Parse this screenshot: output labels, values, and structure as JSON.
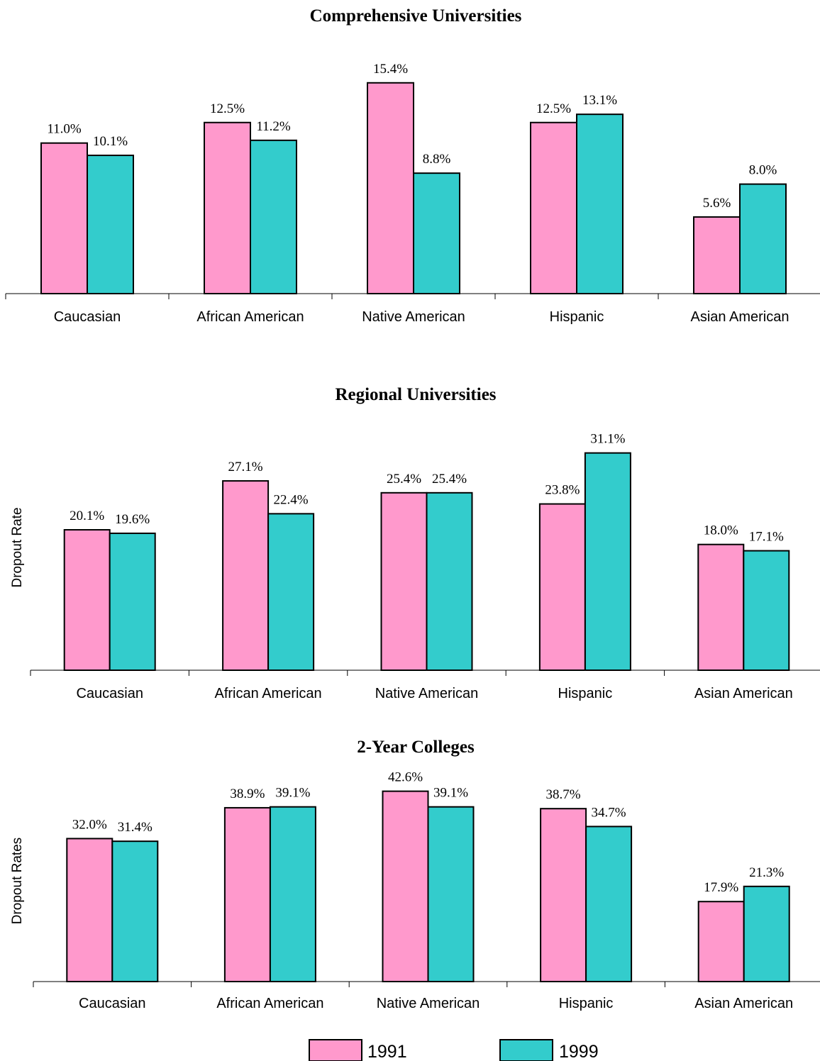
{
  "colors": {
    "1991": "#ff99cc",
    "1999": "#33cccc",
    "outline": "#000000"
  },
  "legend": {
    "placement": "bottom-center",
    "items": [
      {
        "label": "1991",
        "color": "#ff99cc"
      },
      {
        "label": "1999",
        "color": "#33cccc"
      }
    ]
  },
  "chart_data": [
    {
      "type": "bar",
      "title": "Comprehensive Universities",
      "xlabel": "",
      "ylabel": "",
      "categories": [
        "Caucasian",
        "African American",
        "Native American",
        "Hispanic",
        "Asian American"
      ],
      "series": [
        {
          "name": "1991",
          "values": [
            11.0,
            12.5,
            15.4,
            12.5,
            5.6
          ],
          "labels": [
            "11.0%",
            "12.5%",
            "15.4%",
            "12.5%",
            "5.6%"
          ]
        },
        {
          "name": "1999",
          "values": [
            10.1,
            11.2,
            8.8,
            13.1,
            8.0
          ],
          "labels": [
            "10.1%",
            "11.2%",
            "8.8%",
            "13.1%",
            "8.0%"
          ]
        }
      ],
      "grid": false
    },
    {
      "type": "bar",
      "title": "Regional Universities",
      "xlabel": "",
      "ylabel": "Dropout Rate",
      "categories": [
        "Caucasian",
        "African American",
        "Native American",
        "Hispanic",
        "Asian American"
      ],
      "series": [
        {
          "name": "1991",
          "values": [
            20.1,
            27.1,
            25.4,
            23.8,
            18.0
          ],
          "labels": [
            "20.1%",
            "27.1%",
            "25.4%",
            "23.8%",
            "18.0%"
          ]
        },
        {
          "name": "1999",
          "values": [
            19.6,
            22.4,
            25.4,
            31.1,
            17.1
          ],
          "labels": [
            "19.6%",
            "22.4%",
            "25.4%",
            "31.1%",
            "17.1%"
          ]
        }
      ],
      "grid": false
    },
    {
      "type": "bar",
      "title": "2-Year Colleges",
      "xlabel": "",
      "ylabel": "Dropout Rates",
      "categories": [
        "Caucasian",
        "African American",
        "Native American",
        "Hispanic",
        "Asian American"
      ],
      "series": [
        {
          "name": "1991",
          "values": [
            32.0,
            38.9,
            42.6,
            38.7,
            17.9
          ],
          "labels": [
            "32.0%",
            "38.9%",
            "42.6%",
            "38.7%",
            "17.9%"
          ]
        },
        {
          "name": "1999",
          "values": [
            31.4,
            39.1,
            39.1,
            34.7,
            21.3
          ],
          "labels": [
            "31.4%",
            "39.1%",
            "39.1%",
            "34.7%",
            "21.3%"
          ]
        }
      ],
      "grid": false
    }
  ]
}
